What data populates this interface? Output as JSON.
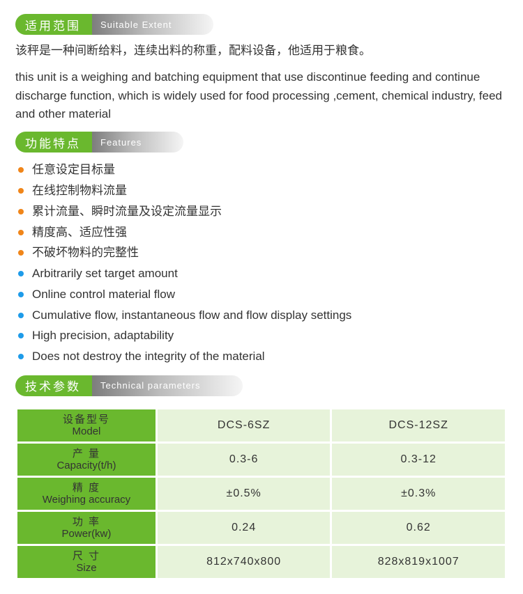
{
  "sections": {
    "extent": {
      "title_cn": "适用范围",
      "title_en": "Suitable Extent",
      "desc_cn": "该秤是一种间断给料，连续出料的称重，配料设备，他适用于粮食。",
      "desc_en": "this unit is a weighing and batching equipment that use discontinue feeding and continue discharge function, which is widely used for food processing ,cement, chemical industry, feed and other material"
    },
    "features": {
      "title_cn": "功能特点",
      "title_en": "Features",
      "items_cn": [
        "任意设定目标量",
        "在线控制物料流量",
        "累计流量、瞬时流量及设定流量显示",
        "精度高、适应性强",
        "不破坏物料的完整性"
      ],
      "items_en": [
        "Arbitrarily set target amount",
        "Online control material flow",
        "Cumulative flow, instantaneous flow and flow display settings",
        "High precision, adaptability",
        "Does not destroy the integrity of the material"
      ],
      "bullet_color_cn": "#f08519",
      "bullet_color_en": "#1e9be9"
    },
    "specs": {
      "title_cn": "技术参数",
      "title_en": "Technical parameters",
      "header_bg": "#6ab82e",
      "value_bg": "#e7f3da",
      "rows": [
        {
          "label_cn": "设备型号",
          "label_en": "Model",
          "c1": "DCS-6SZ",
          "c2": "DCS-12SZ"
        },
        {
          "label_cn": "产 量",
          "label_en": "Capacity(t/h)",
          "c1": "0.3-6",
          "c2": "0.3-12"
        },
        {
          "label_cn": "精  度",
          "label_en": "Weighing accuracy",
          "c1": "±0.5%",
          "c2": "±0.3%"
        },
        {
          "label_cn": "功 率",
          "label_en": "Power(kw)",
          "c1": "0.24",
          "c2": "0.62"
        },
        {
          "label_cn": "尺 寸",
          "label_en": "Size",
          "c1": "812x740x800",
          "c2": "828x819x1007"
        }
      ]
    }
  }
}
